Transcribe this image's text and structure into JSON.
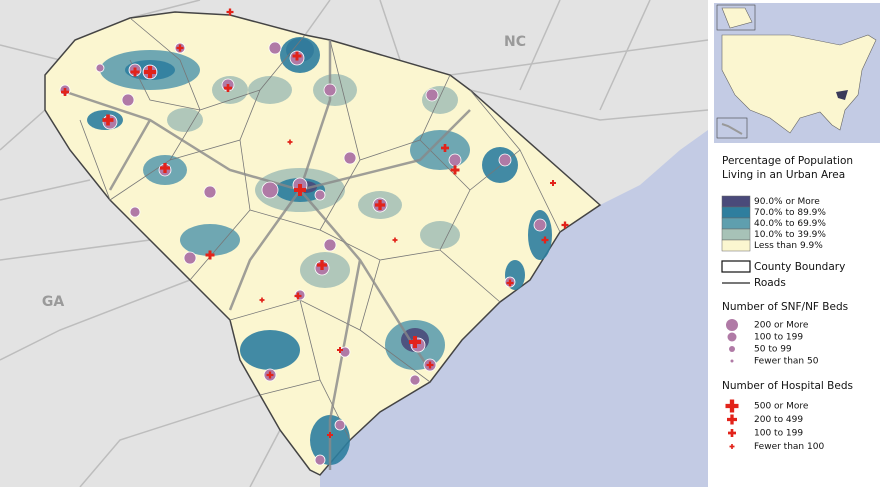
{
  "map_labels": {
    "nc": "NC",
    "ga": "GA"
  },
  "legend": {
    "urban": {
      "title_lines": [
        "Percentage of Population",
        "Living in an Urban Area"
      ],
      "items": [
        {
          "label": "90.0% or More",
          "color": "#4a4a7a"
        },
        {
          "label": "70.0% to 89.9%",
          "color": "#2e7e9e"
        },
        {
          "label": "40.0% to 69.9%",
          "color": "#5f9fae"
        },
        {
          "label": "10.0% to 39.9%",
          "color": "#a7c2b7"
        },
        {
          "label": "Less than 9.9%",
          "color": "#fbf6d0"
        }
      ]
    },
    "boundary": "County Boundary",
    "roads": "Roads",
    "snf": {
      "title": "Number of SNF/NF Beds",
      "items": [
        "200 or More",
        "100 to 199",
        "50 to 99",
        "Fewer than 50"
      ]
    },
    "hospital": {
      "title": "Number of Hospital Beds",
      "items": [
        "500 or More",
        "200 to 499",
        "100 to 199",
        "Fewer than 100"
      ]
    }
  }
}
